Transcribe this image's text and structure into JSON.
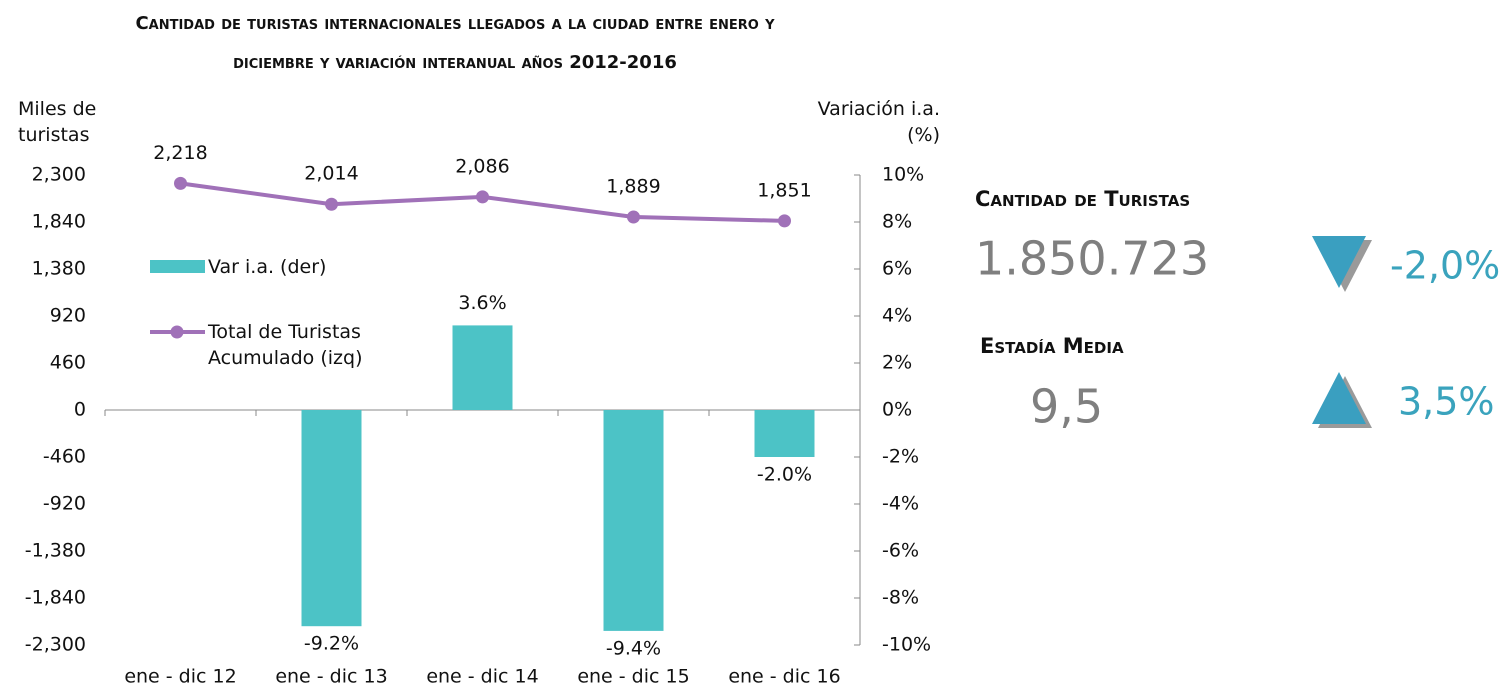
{
  "chart_data": {
    "type": "bar-line",
    "title": "Cantidad de turistas internacionales llegados a la ciudad entre enero y diciembre y variación interanual años 2012-2016",
    "ylabel": "Miles de turistas",
    "y2label": "Variación i.a. (%)",
    "categories": [
      "ene - dic 12",
      "ene - dic 13",
      "ene - dic 14",
      "ene - dic 15",
      "ene - dic 16"
    ],
    "series": [
      {
        "name": "Var i.a. (der)",
        "type": "bar",
        "axis": "y2",
        "color": "#4cc3c6",
        "values": [
          null,
          -9.2,
          3.6,
          -9.4,
          -2.0
        ],
        "value_labels": [
          null,
          "-9.2%",
          "3.6%",
          "-9.4%",
          "-2.0%"
        ]
      },
      {
        "name": "Total de Turistas Acumulado (izq)",
        "type": "line",
        "color": "#a071b8",
        "values": [
          2218,
          2014,
          2086,
          1889,
          1851
        ],
        "value_labels": [
          "2,218",
          "2,014",
          "2,086",
          "1,889",
          "1,851"
        ]
      }
    ],
    "ylim": [
      -2300,
      2300
    ],
    "yticks": [
      {
        "value": 2300,
        "label": "2,300"
      },
      {
        "value": 1840,
        "label": "1,840"
      },
      {
        "value": 1380,
        "label": "1,380"
      },
      920,
      460,
      0,
      -460,
      -920,
      {
        "value": -1380,
        "label": "-1,380"
      },
      {
        "value": -1840,
        "label": "-1,840"
      },
      {
        "value": -2300,
        "label": "-2,300"
      }
    ],
    "y2lim": [
      -10,
      10
    ],
    "y2ticks": [
      {
        "value": 10,
        "label": "10%"
      },
      {
        "value": 8,
        "label": "8%"
      },
      {
        "value": 6,
        "label": "6%"
      },
      {
        "value": 4,
        "label": "4%"
      },
      {
        "value": 2,
        "label": "2%"
      },
      {
        "value": 0,
        "label": "0%"
      },
      {
        "value": -2,
        "label": "-2%"
      },
      {
        "value": -4,
        "label": "-4%"
      },
      {
        "value": -6,
        "label": "-6%"
      },
      {
        "value": -8,
        "label": "-8%"
      },
      {
        "value": -10,
        "label": "-10%"
      }
    ],
    "legend": "upper left"
  },
  "kpis": [
    {
      "label": "Cantidad de Turistas",
      "value": "1.850.723",
      "change": "-2,0%",
      "trend": "down"
    },
    {
      "label": "Estadía Media",
      "value": "9,5",
      "change": "3,5%",
      "trend": "up"
    }
  ]
}
